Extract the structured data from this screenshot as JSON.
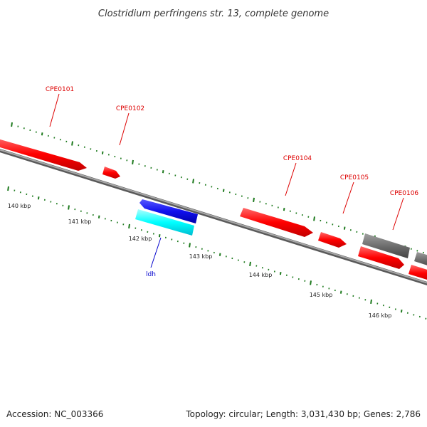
{
  "title": "Clostridium perfringens str. 13, complete genome",
  "footer": {
    "accession": "Accession: NC_003366",
    "summary": "Topology: circular; Length: 3,031,430 bp; Genes: 2,786"
  },
  "colors": {
    "forward_gene": "#ff0000",
    "reverse_gene": "#ff0000",
    "rna_gene": "#0000ff",
    "highlight_gene": "#00ffff",
    "other_gene": "#6e6e6e",
    "tick": "#1e7a1e",
    "backbone": "#8c8c8c",
    "label_red": "#dd0000",
    "label_blue": "#0000cc"
  },
  "kbp_labels": [
    "140 kbp",
    "141 kbp",
    "142 kbp",
    "143 kbp",
    "144 kbp",
    "145 kbp",
    "146 kbp"
  ],
  "gene_labels": [
    {
      "name": "CPE0101",
      "color": "red"
    },
    {
      "name": "CPE0102",
      "color": "red"
    },
    {
      "name": "CPE0104",
      "color": "red"
    },
    {
      "name": "CPE0105",
      "color": "red"
    },
    {
      "name": "CPE0106",
      "color": "red"
    },
    {
      "name": "ldh",
      "color": "blue"
    }
  ]
}
